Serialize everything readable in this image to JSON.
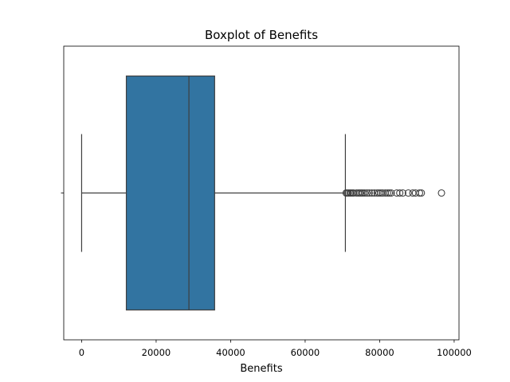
{
  "chart_data": {
    "type": "box",
    "title": "Boxplot of Benefits",
    "xlabel": "Benefits",
    "ylabel": "",
    "xlim": [
      -4800,
      101300
    ],
    "xticks": [
      0,
      20000,
      40000,
      60000,
      80000,
      100000
    ],
    "xtick_labels": [
      "0",
      "20000",
      "40000",
      "60000",
      "80000",
      "100000"
    ],
    "grid": false,
    "box": {
      "whisker_low": 0,
      "q1": 12000,
      "median": 28800,
      "q3": 35700,
      "whisker_high": 70800,
      "color": "#3274a1",
      "outliers": [
        71000,
        71300,
        71600,
        72000,
        72300,
        72700,
        73000,
        73800,
        74300,
        74700,
        75100,
        75500,
        76000,
        76600,
        77200,
        77900,
        78600,
        79300,
        79800,
        80300,
        80800,
        81500,
        82100,
        82600,
        83100,
        84600,
        85400,
        86200,
        87700,
        88900,
        89600,
        90700,
        91200,
        96600
      ]
    }
  }
}
